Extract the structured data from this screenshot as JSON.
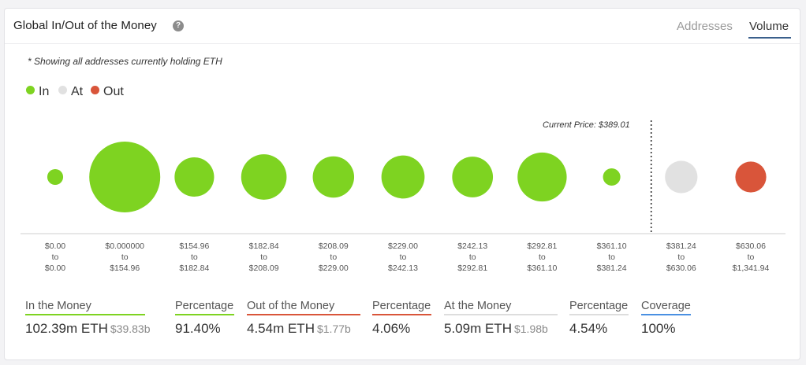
{
  "header": {
    "title": "Global In/Out of the Money",
    "help_icon": "question-icon",
    "tabs": [
      {
        "label": "Addresses",
        "active": false
      },
      {
        "label": "Volume",
        "active": true
      }
    ]
  },
  "note": "* Showing all addresses currently holding ETH",
  "legend": [
    {
      "label": "In",
      "color": "#7ed321"
    },
    {
      "label": "At",
      "color": "#e1e1e1"
    },
    {
      "label": "Out",
      "color": "#d9553a"
    }
  ],
  "chart_data": {
    "type": "bubble",
    "current_price_label": "Current Price: $389.01",
    "categories": [
      {
        "from": "$0.00",
        "to": "$0.00",
        "status": "In",
        "relative_volume": 0.05
      },
      {
        "from": "$0.000000",
        "to": "$154.96",
        "status": "In",
        "relative_volume": 1.0
      },
      {
        "from": "$154.96",
        "to": "$182.84",
        "status": "In",
        "relative_volume": 0.31
      },
      {
        "from": "$182.84",
        "to": "$208.09",
        "status": "In",
        "relative_volume": 0.41
      },
      {
        "from": "$208.09",
        "to": "$229.00",
        "status": "In",
        "relative_volume": 0.34
      },
      {
        "from": "$229.00",
        "to": "$242.13",
        "status": "In",
        "relative_volume": 0.37
      },
      {
        "from": "$242.13",
        "to": "$292.81",
        "status": "In",
        "relative_volume": 0.33
      },
      {
        "from": "$292.81",
        "to": "$361.10",
        "status": "In",
        "relative_volume": 0.48
      },
      {
        "from": "$361.10",
        "to": "$381.24",
        "status": "In",
        "relative_volume": 0.06
      },
      {
        "from": "$381.24",
        "to": "$630.06",
        "status": "At",
        "relative_volume": 0.21
      },
      {
        "from": "$630.06",
        "to": "$1,341.94",
        "status": "Out",
        "relative_volume": 0.19
      }
    ],
    "to_word": "to",
    "status_colors": {
      "In": "#7ed321",
      "At": "#e1e1e1",
      "Out": "#d9553a"
    }
  },
  "stats": [
    {
      "label": "In the Money",
      "value": "102.39m ETH",
      "sub": "$39.83b",
      "underline": "#7ed321"
    },
    {
      "label": "Percentage",
      "value": "91.40%",
      "sub": "",
      "underline": "#7ed321"
    },
    {
      "label": "Out of the Money",
      "value": "4.54m ETH",
      "sub": "$1.77b",
      "underline": "#d9553a"
    },
    {
      "label": "Percentage",
      "value": "4.06%",
      "sub": "",
      "underline": "#d9553a"
    },
    {
      "label": "At the Money",
      "value": "5.09m ETH",
      "sub": "$1.98b",
      "underline": "#dddddd"
    },
    {
      "label": "Percentage",
      "value": "4.54%",
      "sub": "",
      "underline": "#dddddd"
    },
    {
      "label": "Coverage",
      "value": "100%",
      "sub": "",
      "underline": "#4a90e2"
    }
  ]
}
